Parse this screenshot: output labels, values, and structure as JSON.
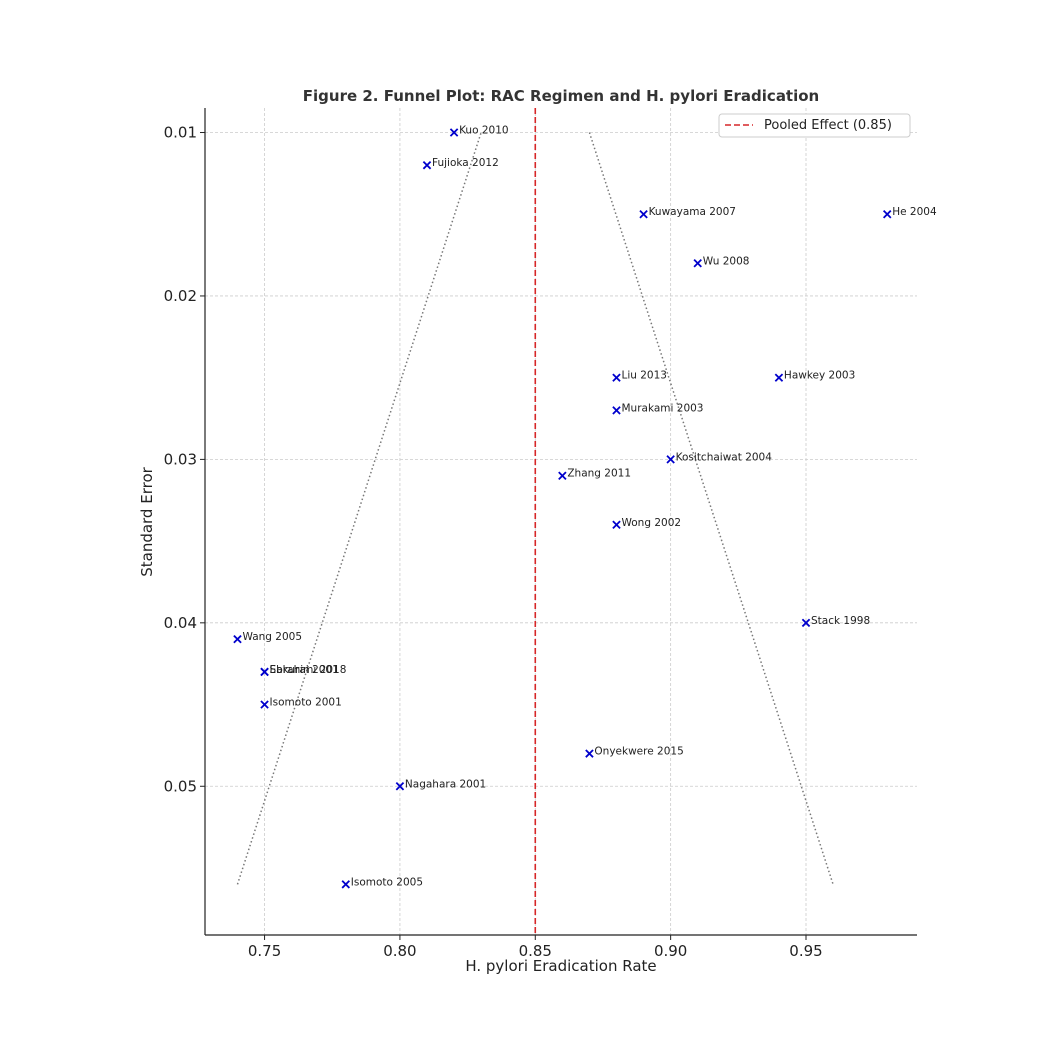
{
  "chart_data": {
    "type": "scatter",
    "title": "Figure 2. Funnel Plot: RAC Regimen and H. pylori Eradication",
    "xlabel": "H. pylori Eradication Rate",
    "ylabel": "Standard Error",
    "xlim": [
      0.728,
      0.991
    ],
    "ylim": [
      0.0085,
      0.0591
    ],
    "y_inverted": true,
    "xticks": [
      "0.75",
      "0.80",
      "0.85",
      "0.90",
      "0.95"
    ],
    "xtick_values": [
      0.75,
      0.8,
      0.85,
      0.9,
      0.95
    ],
    "yticks": [
      "0.01",
      "0.02",
      "0.03",
      "0.04",
      "0.05"
    ],
    "ytick_values": [
      0.01,
      0.02,
      0.03,
      0.04,
      0.05
    ],
    "grid": true,
    "marker": "x",
    "marker_color": "#0000cc",
    "points": [
      {
        "label": "Kuo 2010",
        "x": 0.82,
        "y": 0.01
      },
      {
        "label": "Fujioka 2012",
        "x": 0.81,
        "y": 0.012
      },
      {
        "label": "Kuwayama 2007",
        "x": 0.89,
        "y": 0.015
      },
      {
        "label": "He 2004",
        "x": 0.98,
        "y": 0.015
      },
      {
        "label": "Wu 2008",
        "x": 0.91,
        "y": 0.018
      },
      {
        "label": "Liu 2013",
        "x": 0.88,
        "y": 0.025
      },
      {
        "label": "Hawkey 2003",
        "x": 0.94,
        "y": 0.025
      },
      {
        "label": "Murakami 2003",
        "x": 0.88,
        "y": 0.027
      },
      {
        "label": "Kositchaiwat 2004",
        "x": 0.9,
        "y": 0.03
      },
      {
        "label": "Zhang 2011",
        "x": 0.86,
        "y": 0.031
      },
      {
        "label": "Wong 2002",
        "x": 0.88,
        "y": 0.034
      },
      {
        "label": "Stack 1998",
        "x": 0.95,
        "y": 0.04
      },
      {
        "label": "Wang 2005",
        "x": 0.74,
        "y": 0.041
      },
      {
        "label": "Sakurai 2001",
        "x": 0.75,
        "y": 0.043
      },
      {
        "label": "Ebrahimi 2018",
        "x": 0.75,
        "y": 0.043
      },
      {
        "label": "Isomoto 2001",
        "x": 0.75,
        "y": 0.045
      },
      {
        "label": "Onyekwere 2015",
        "x": 0.87,
        "y": 0.048
      },
      {
        "label": "Nagahara 2001",
        "x": 0.8,
        "y": 0.05
      },
      {
        "label": "Isomoto 2005",
        "x": 0.78,
        "y": 0.056
      }
    ],
    "pooled_effect": {
      "value": 0.85,
      "label": "Pooled Effect (0.85)",
      "color": "#d62728",
      "style": "dashed"
    },
    "funnel_lines": {
      "color": "#777777",
      "style": "dotted",
      "left": [
        [
          0.74,
          0.056
        ],
        [
          0.83,
          0.01
        ]
      ],
      "right": [
        [
          0.87,
          0.01
        ],
        [
          0.96,
          0.056
        ]
      ]
    },
    "legend": {
      "placement": "top-right",
      "entries": [
        "Pooled Effect (0.85)"
      ]
    }
  }
}
